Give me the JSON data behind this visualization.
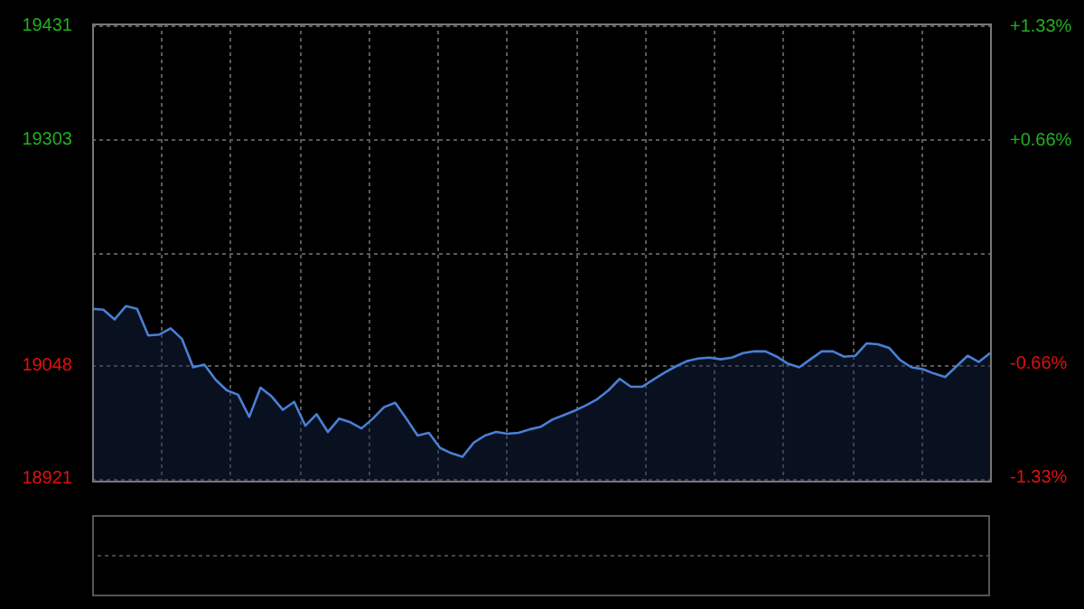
{
  "chart_data": {
    "type": "area",
    "grid": true,
    "tick_labels": "y",
    "categories": [
      null,
      null,
      null,
      null,
      null,
      null,
      null,
      null,
      null,
      null,
      null,
      null,
      null,
      null,
      null,
      null,
      null,
      null,
      null,
      null,
      null,
      null,
      null,
      null,
      null,
      null,
      null,
      null,
      null,
      null,
      null,
      null,
      null,
      null,
      null,
      null,
      null,
      null,
      null,
      null,
      null,
      null,
      null,
      null,
      null,
      null,
      null,
      null,
      null,
      null,
      null,
      null,
      null,
      null,
      null,
      null,
      null,
      null,
      null,
      null,
      null,
      null,
      null,
      null,
      null,
      null,
      null,
      null,
      null,
      null,
      null,
      null,
      null,
      null,
      null,
      null,
      null,
      null,
      null,
      null,
      null
    ],
    "series": [
      {
        "color": "#4a7fd4",
        "values": [
          19112,
          19111,
          19100,
          19115,
          19112,
          19082,
          19083,
          19090,
          19078,
          19046,
          19049,
          19032,
          19020,
          19015,
          18990,
          19023,
          19013,
          18998,
          19007,
          18980,
          18993,
          18973,
          18988,
          18984,
          18977,
          18988,
          19001,
          19006,
          18988,
          18969,
          18972,
          18955,
          18949,
          18945,
          18961,
          18969,
          18973,
          18971,
          18972,
          18976,
          18979,
          18987,
          18992,
          18997,
          19003,
          19010,
          19020,
          19033,
          19024,
          19024,
          19032,
          19040,
          19047,
          19053,
          19056,
          19057,
          19055,
          19057,
          19062,
          19064,
          19064,
          19058,
          19050,
          19046,
          19055,
          19064,
          19064,
          19058,
          19059,
          19073,
          19072,
          19068,
          19054,
          19046,
          19044,
          19039,
          19035,
          19047,
          19059,
          19052,
          19062
        ]
      }
    ],
    "ylim": [
      18918,
      19434
    ],
    "yticks": [
      18921,
      19048,
      {
        "value": 19175,
        "label": null
      },
      19303,
      19431
    ],
    "y2lim": [
      -1.35,
      1.35
    ],
    "y2ticks": [
      {
        "value": -1.33,
        "label": "-1.33%"
      },
      {
        "value": -0.66,
        "label": "-0.66%"
      },
      {
        "value": 0.66,
        "label": "+0.66%"
      },
      {
        "value": 1.33,
        "label": "+1.33%"
      }
    ]
  }
}
